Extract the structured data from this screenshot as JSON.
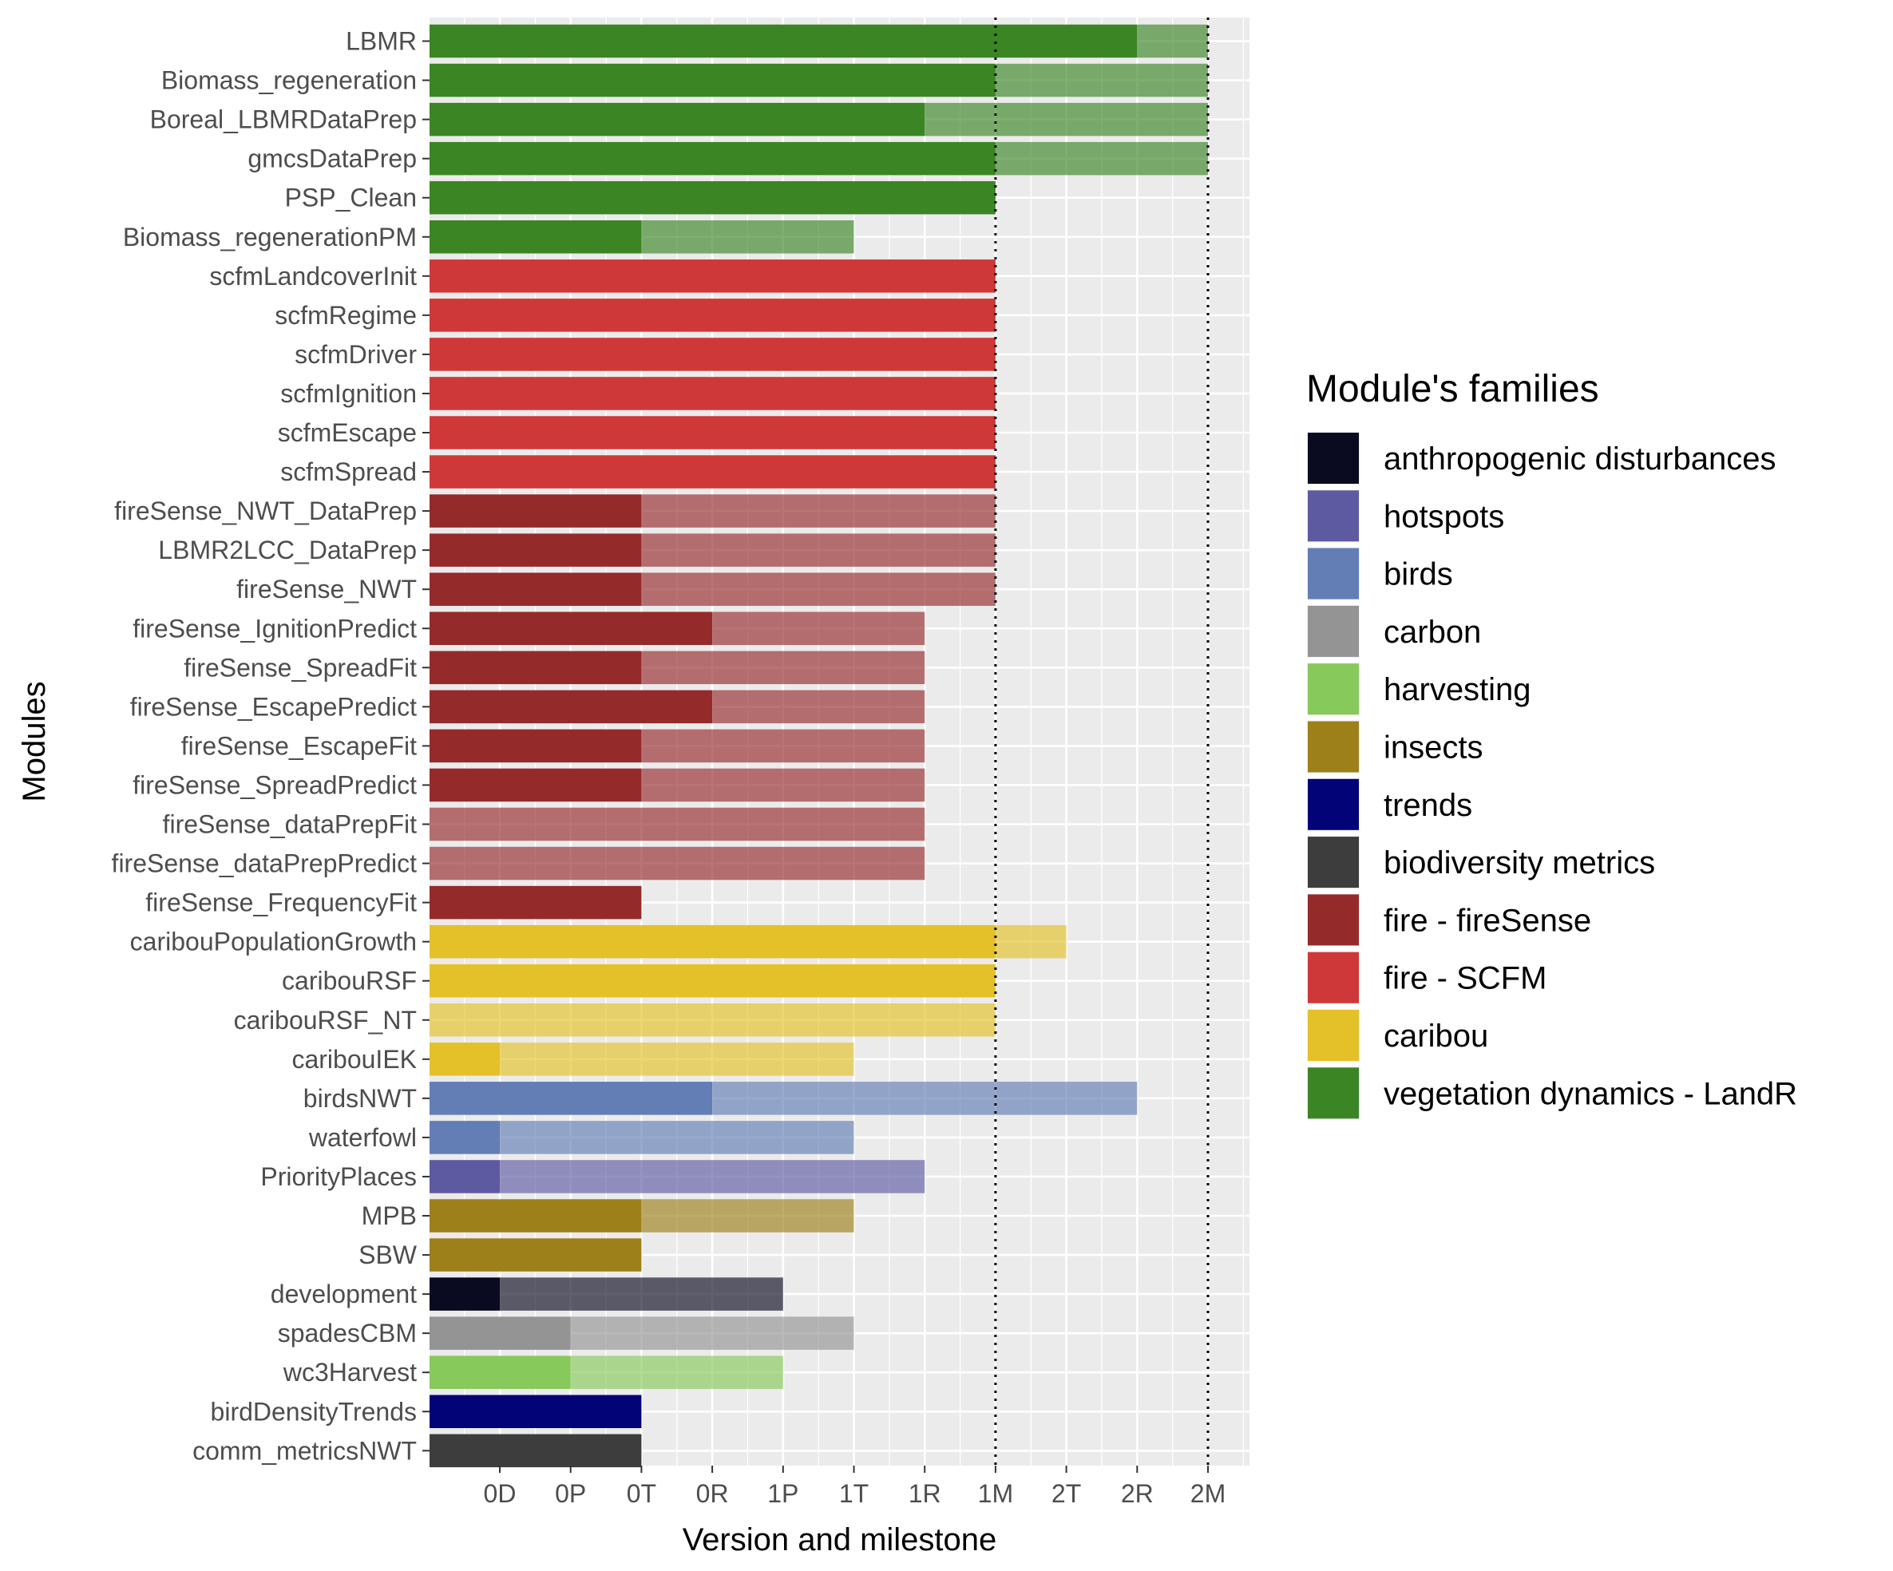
{
  "chart_data": {
    "type": "bar",
    "orientation": "horizontal",
    "stacked": true,
    "xlabel": "Version and milestone",
    "ylabel": "Modules",
    "x_levels": [
      "0D",
      "0P",
      "0T",
      "0R",
      "1P",
      "1T",
      "1R",
      "1M",
      "2T",
      "2R",
      "2M"
    ],
    "reference_lines": [
      "1M",
      "2M"
    ],
    "grid": true,
    "legend_position": "right",
    "legend": {
      "title": "Module's families",
      "items": [
        {
          "label": "anthropogenic disturbances",
          "color": "#0a0a21"
        },
        {
          "label": "hotspots",
          "color": "#5e5aa1"
        },
        {
          "label": "birds",
          "color": "#637db5"
        },
        {
          "label": "carbon",
          "color": "#949494"
        },
        {
          "label": "harvesting",
          "color": "#87c95b"
        },
        {
          "label": "insects",
          "color": "#9e801a"
        },
        {
          "label": "trends",
          "color": "#030378"
        },
        {
          "label": "biodiversity metrics",
          "color": "#3d3d3d"
        },
        {
          "label": "fire - fireSense",
          "color": "#952a2b"
        },
        {
          "label": "fire - SCFM",
          "color": "#cf3838"
        },
        {
          "label": "caribou",
          "color": "#e4c128"
        },
        {
          "label": "vegetation dynamics - LandR",
          "color": "#3b8525"
        }
      ]
    },
    "categories": [
      {
        "module": "LBMR",
        "family": "vegetation dynamics - LandR",
        "current": "2R",
        "target": "2M"
      },
      {
        "module": "Biomass_regeneration",
        "family": "vegetation dynamics - LandR",
        "current": "1M",
        "target": "2M"
      },
      {
        "module": "Boreal_LBMRDataPrep",
        "family": "vegetation dynamics - LandR",
        "current": "1R",
        "target": "2M"
      },
      {
        "module": "gmcsDataPrep",
        "family": "vegetation dynamics - LandR",
        "current": "1M",
        "target": "2M"
      },
      {
        "module": "PSP_Clean",
        "family": "vegetation dynamics - LandR",
        "current": "1M",
        "target": "1M"
      },
      {
        "module": "Biomass_regenerationPM",
        "family": "vegetation dynamics - LandR",
        "current": "0T",
        "target": "1T"
      },
      {
        "module": "scfmLandcoverInit",
        "family": "fire - SCFM",
        "current": "1M",
        "target": "1M"
      },
      {
        "module": "scfmRegime",
        "family": "fire - SCFM",
        "current": "1M",
        "target": "1M"
      },
      {
        "module": "scfmDriver",
        "family": "fire - SCFM",
        "current": "1M",
        "target": "1M"
      },
      {
        "module": "scfmIgnition",
        "family": "fire - SCFM",
        "current": "1M",
        "target": "1M"
      },
      {
        "module": "scfmEscape",
        "family": "fire - SCFM",
        "current": "1M",
        "target": "1M"
      },
      {
        "module": "scfmSpread",
        "family": "fire - SCFM",
        "current": "1M",
        "target": "1M"
      },
      {
        "module": "fireSense_NWT_DataPrep",
        "family": "fire - fireSense",
        "current": "0T",
        "target": "1M"
      },
      {
        "module": "LBMR2LCC_DataPrep",
        "family": "fire - fireSense",
        "current": "0T",
        "target": "1M"
      },
      {
        "module": "fireSense_NWT",
        "family": "fire - fireSense",
        "current": "0T",
        "target": "1M"
      },
      {
        "module": "fireSense_IgnitionPredict",
        "family": "fire - fireSense",
        "current": "0R",
        "target": "1R"
      },
      {
        "module": "fireSense_SpreadFit",
        "family": "fire - fireSense",
        "current": "0T",
        "target": "1R"
      },
      {
        "module": "fireSense_EscapePredict",
        "family": "fire - fireSense",
        "current": "0R",
        "target": "1R"
      },
      {
        "module": "fireSense_EscapeFit",
        "family": "fire - fireSense",
        "current": "0T",
        "target": "1R"
      },
      {
        "module": "fireSense_SpreadPredict",
        "family": "fire - fireSense",
        "current": "0T",
        "target": "1R"
      },
      {
        "module": "fireSense_dataPrepFit",
        "family": "fire - fireSense",
        "current": null,
        "target": "1R"
      },
      {
        "module": "fireSense_dataPrepPredict",
        "family": "fire - fireSense",
        "current": null,
        "target": "1R"
      },
      {
        "module": "fireSense_FrequencyFit",
        "family": "fire - fireSense",
        "current": "0T",
        "target": "0T"
      },
      {
        "module": "caribouPopulationGrowth",
        "family": "caribou",
        "current": "1M",
        "target": "2T"
      },
      {
        "module": "caribouRSF",
        "family": "caribou",
        "current": "1M",
        "target": "1M"
      },
      {
        "module": "caribouRSF_NT",
        "family": "caribou",
        "current": null,
        "target": "1M"
      },
      {
        "module": "caribouIEK",
        "family": "caribou",
        "current": "0D",
        "target": "1T"
      },
      {
        "module": "birdsNWT",
        "family": "birds",
        "current": "0R",
        "target": "2R"
      },
      {
        "module": "waterfowl",
        "family": "birds",
        "current": "0D",
        "target": "1T"
      },
      {
        "module": "PriorityPlaces",
        "family": "hotspots",
        "current": "0D",
        "target": "1R"
      },
      {
        "module": "MPB",
        "family": "insects",
        "current": "0T",
        "target": "1T"
      },
      {
        "module": "SBW",
        "family": "insects",
        "current": "0T",
        "target": "0T"
      },
      {
        "module": "development",
        "family": "anthropogenic disturbances",
        "current": "0D",
        "target": "1P"
      },
      {
        "module": "spadesCBM",
        "family": "carbon",
        "current": "0P",
        "target": "1T"
      },
      {
        "module": "wc3Harvest",
        "family": "harvesting",
        "current": "0P",
        "target": "1P"
      },
      {
        "module": "birdDensityTrends",
        "family": "trends",
        "current": "0T",
        "target": "0T"
      },
      {
        "module": "comm_metricsNWT",
        "family": "biodiversity metrics",
        "current": "0T",
        "target": "0T"
      }
    ]
  }
}
